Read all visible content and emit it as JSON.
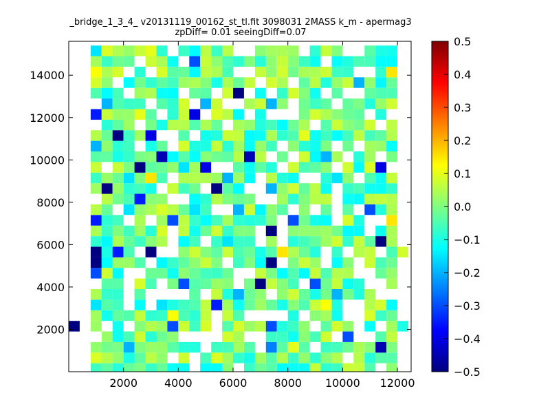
{
  "chart_data": {
    "type": "heatmap",
    "title_line1": "_bridge_1_3_4_ v20131119_00162_st_tl.fit 3098031 2MASS k_m - apermag3",
    "title_line2": "zpDiff= 0.01 seeingDiff=0.07",
    "xlim": [
      0,
      12500
    ],
    "ylim": [
      0,
      15600
    ],
    "x_ticks": [
      "2000",
      "4000",
      "6000",
      "8000",
      "10000",
      "12000"
    ],
    "y_ticks": [
      "2000",
      "4000",
      "6000",
      "8000",
      "10000",
      "12000",
      "14000"
    ],
    "colorbar": {
      "vmin": -0.5,
      "vmax": 0.5,
      "ticks": [
        "0.5",
        "0.4",
        "0.3",
        "0.2",
        "0.1",
        "0.0",
        "−0.1",
        "−0.2",
        "−0.3",
        "−0.4",
        "−0.5"
      ],
      "colormap": "jet"
    },
    "cells": [
      {
        "x": 200,
        "y": 2150,
        "v": -0.5
      },
      {
        "x": 1900,
        "y": 10900,
        "v": -0.5
      },
      {
        "x": 2700,
        "y": 9550,
        "v": -0.5
      },
      {
        "x": 1700,
        "y": 8400,
        "v": -0.5
      },
      {
        "x": 6500,
        "y": 12900,
        "v": -0.5
      },
      {
        "x": 5700,
        "y": 8400,
        "v": -0.5
      },
      {
        "x": 7500,
        "y": 6450,
        "v": -0.5
      },
      {
        "x": 1000,
        "y": 5500,
        "v": -0.5
      },
      {
        "x": 3300,
        "y": 5500,
        "v": -0.5
      },
      {
        "x": 1300,
        "y": 5000,
        "v": -0.5
      },
      {
        "x": 7300,
        "y": 4000,
        "v": -0.5
      },
      {
        "x": 7500,
        "y": 5000,
        "v": -0.5
      },
      {
        "x": 11700,
        "y": 6000,
        "v": -0.5
      },
      {
        "x": 3700,
        "y": 10000,
        "v": -0.45
      },
      {
        "x": 6900,
        "y": 10000,
        "v": -0.45
      },
      {
        "x": 11700,
        "y": 1000,
        "v": -0.45
      },
      {
        "x": 3300,
        "y": 10900,
        "v": -0.4
      },
      {
        "x": 4900,
        "y": 11900,
        "v": -0.4
      },
      {
        "x": 5300,
        "y": 9550,
        "v": -0.4
      },
      {
        "x": 11700,
        "y": 9550,
        "v": -0.4
      },
      {
        "x": 1100,
        "y": 11900,
        "v": -0.35
      },
      {
        "x": 1300,
        "y": 7000,
        "v": -0.35
      },
      {
        "x": 2900,
        "y": 8000,
        "v": -0.35
      },
      {
        "x": 2100,
        "y": 5500,
        "v": -0.35
      },
      {
        "x": 5700,
        "y": 3000,
        "v": -0.35
      },
      {
        "x": 4500,
        "y": 4000,
        "v": -0.3
      },
      {
        "x": 4100,
        "y": 2100,
        "v": -0.3
      },
      {
        "x": 10500,
        "y": 1600,
        "v": -0.3
      },
      {
        "x": 4900,
        "y": 14400,
        "v": -0.3
      },
      {
        "x": 7300,
        "y": 15400,
        "v": -0.3
      },
      {
        "x": 8500,
        "y": 7000,
        "v": -0.3
      },
      {
        "x": 9300,
        "y": 4000,
        "v": -0.3
      },
      {
        "x": 11300,
        "y": 7500,
        "v": -0.3
      },
      {
        "x": 1100,
        "y": 4500,
        "v": -0.3
      },
      {
        "x": 7700,
        "y": 2100,
        "v": -0.3
      },
      {
        "x": 3900,
        "y": 7000,
        "v": -0.3
      },
      {
        "x": 7500,
        "y": 1100,
        "v": -0.25
      },
      {
        "x": 9900,
        "y": 3500,
        "v": -0.2
      },
      {
        "x": 6300,
        "y": 3500,
        "v": -0.2
      },
      {
        "x": 1500,
        "y": 12400,
        "v": -0.2
      },
      {
        "x": 5100,
        "y": 12400,
        "v": -0.2
      },
      {
        "x": 7700,
        "y": 12400,
        "v": -0.2
      },
      {
        "x": 11300,
        "y": 15400,
        "v": -0.2
      },
      {
        "x": 10700,
        "y": 13400,
        "v": -0.2
      },
      {
        "x": 1100,
        "y": 10400,
        "v": -0.2
      },
      {
        "x": 5900,
        "y": 9050,
        "v": -0.2
      },
      {
        "x": 6300,
        "y": 7500,
        "v": -0.2
      },
      {
        "x": 2500,
        "y": 1100,
        "v": -0.2
      },
      {
        "x": 9500,
        "y": 10000,
        "v": -0.2
      },
      {
        "x": 7700,
        "y": 8400,
        "v": -0.2
      },
      {
        "x": 4500,
        "y": 9550,
        "v": -0.15
      },
      {
        "x": 9900,
        "y": 9050,
        "v": -0.15
      },
      {
        "x": 2300,
        "y": 9050,
        "v": -0.15
      },
      {
        "x": 1300,
        "y": 3000,
        "v": -0.15
      },
      {
        "x": 3700,
        "y": 3000,
        "v": -0.15
      },
      {
        "x": 1300,
        "y": 14900,
        "v": -0.15
      },
      {
        "x": 2500,
        "y": 7500,
        "v": -0.15
      },
      {
        "x": 4700,
        "y": 7500,
        "v": -0.15
      },
      {
        "x": 6100,
        "y": 6000,
        "v": -0.15
      },
      {
        "x": 12300,
        "y": 2100,
        "v": -0.1
      },
      {
        "x": 11500,
        "y": 14900,
        "v": -0.1
      },
      {
        "x": 11900,
        "y": 7000,
        "v": 0.15
      },
      {
        "x": 11900,
        "y": 13900,
        "v": 0.15
      },
      {
        "x": 3300,
        "y": 9050,
        "v": 0.15
      },
      {
        "x": 8100,
        "y": 5500,
        "v": 0.15
      },
      {
        "x": 9500,
        "y": 3000,
        "v": 0.12
      },
      {
        "x": 3900,
        "y": 2600,
        "v": 0.12
      },
      {
        "x": 1100,
        "y": 13900,
        "v": 0.12
      },
      {
        "x": 8300,
        "y": 1100,
        "v": 0.1
      },
      {
        "x": 8700,
        "y": 10900,
        "v": 0.1
      },
      {
        "x": 2700,
        "y": 11900,
        "v": 0.1
      },
      {
        "x": 3300,
        "y": 14900,
        "v": 0.1
      },
      {
        "x": 12300,
        "y": 5500,
        "v": 0.08
      }
    ]
  }
}
